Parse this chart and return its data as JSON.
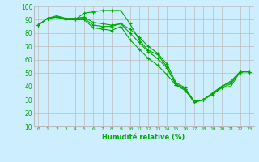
{
  "xlabel": "Humidité relative (%)",
  "bg_color": "#cceeff",
  "grid_color": "#bbbbbb",
  "line_color": "#00aa00",
  "marker": "+",
  "xlim": [
    -0.5,
    23.5
  ],
  "ylim": [
    10,
    100
  ],
  "yticks": [
    10,
    20,
    30,
    40,
    50,
    60,
    70,
    80,
    90,
    100
  ],
  "xticks": [
    0,
    1,
    2,
    3,
    4,
    5,
    6,
    7,
    8,
    9,
    10,
    11,
    12,
    13,
    14,
    15,
    16,
    17,
    18,
    19,
    20,
    21,
    22,
    23
  ],
  "series": [
    [
      86,
      91,
      92,
      90,
      90,
      95,
      96,
      97,
      97,
      97,
      87,
      75,
      67,
      64,
      55,
      41,
      38,
      28,
      30,
      35,
      39,
      40,
      51,
      51
    ],
    [
      86,
      91,
      93,
      91,
      90,
      90,
      84,
      83,
      82,
      85,
      75,
      68,
      61,
      56,
      49,
      41,
      37,
      29,
      30,
      35,
      40,
      44,
      51,
      51
    ],
    [
      86,
      91,
      92,
      91,
      91,
      92,
      88,
      87,
      86,
      87,
      80,
      73,
      66,
      61,
      54,
      42,
      38,
      28,
      30,
      34,
      39,
      42,
      51,
      51
    ],
    [
      86,
      91,
      92,
      91,
      91,
      91,
      86,
      85,
      85,
      87,
      83,
      77,
      70,
      65,
      57,
      43,
      39,
      29,
      30,
      35,
      40,
      43,
      51,
      51
    ]
  ]
}
